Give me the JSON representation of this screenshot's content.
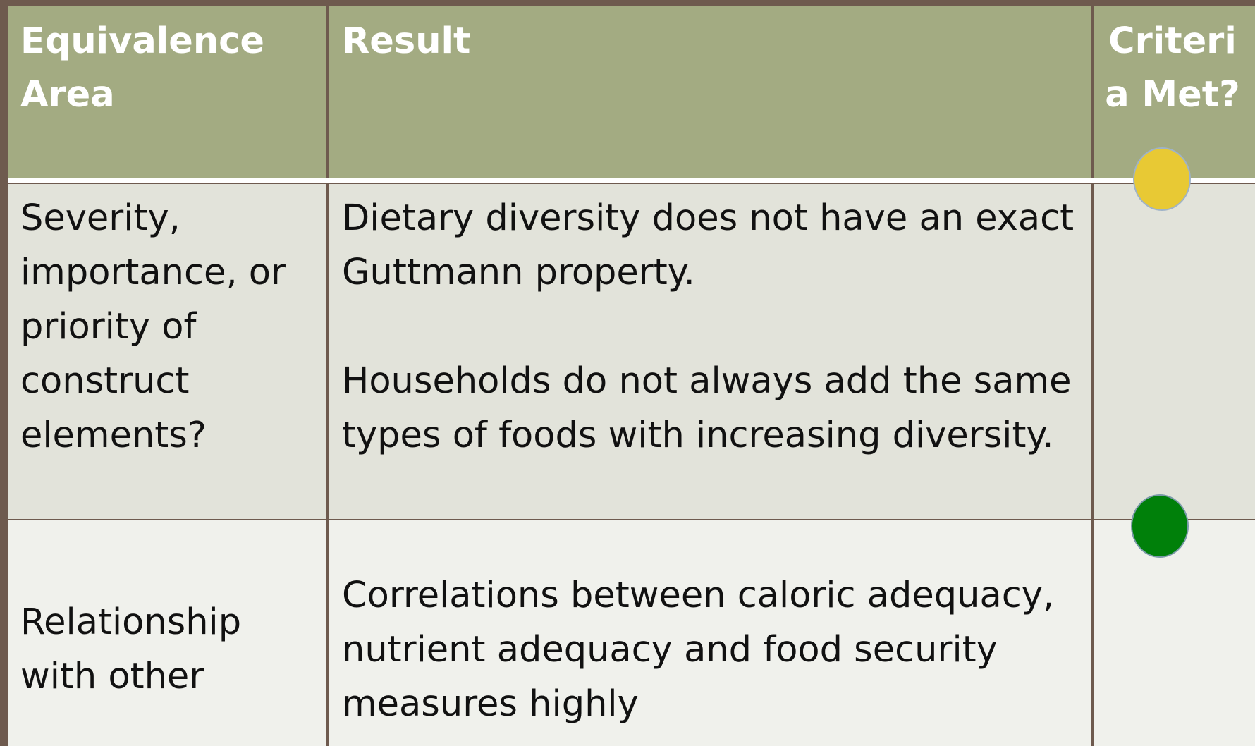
{
  "table": {
    "header": [
      "Equivalence Area",
      "Result",
      "Criteria Met?"
    ],
    "rows": [
      [
        [
          "Severity, importance, or priority of construct elements?"
        ],
        [
          "Dietary diversity does not have an exact Guttmann property.",
          "Households do not always add the same types of foods with increasing diversity."
        ],
        [
          ""
        ]
      ],
      [
        [
          "Relationship with other"
        ],
        [
          "Correlations between caloric adequacy, nutrient adequacy and food security measures highly"
        ],
        [
          ""
        ]
      ]
    ]
  }
}
